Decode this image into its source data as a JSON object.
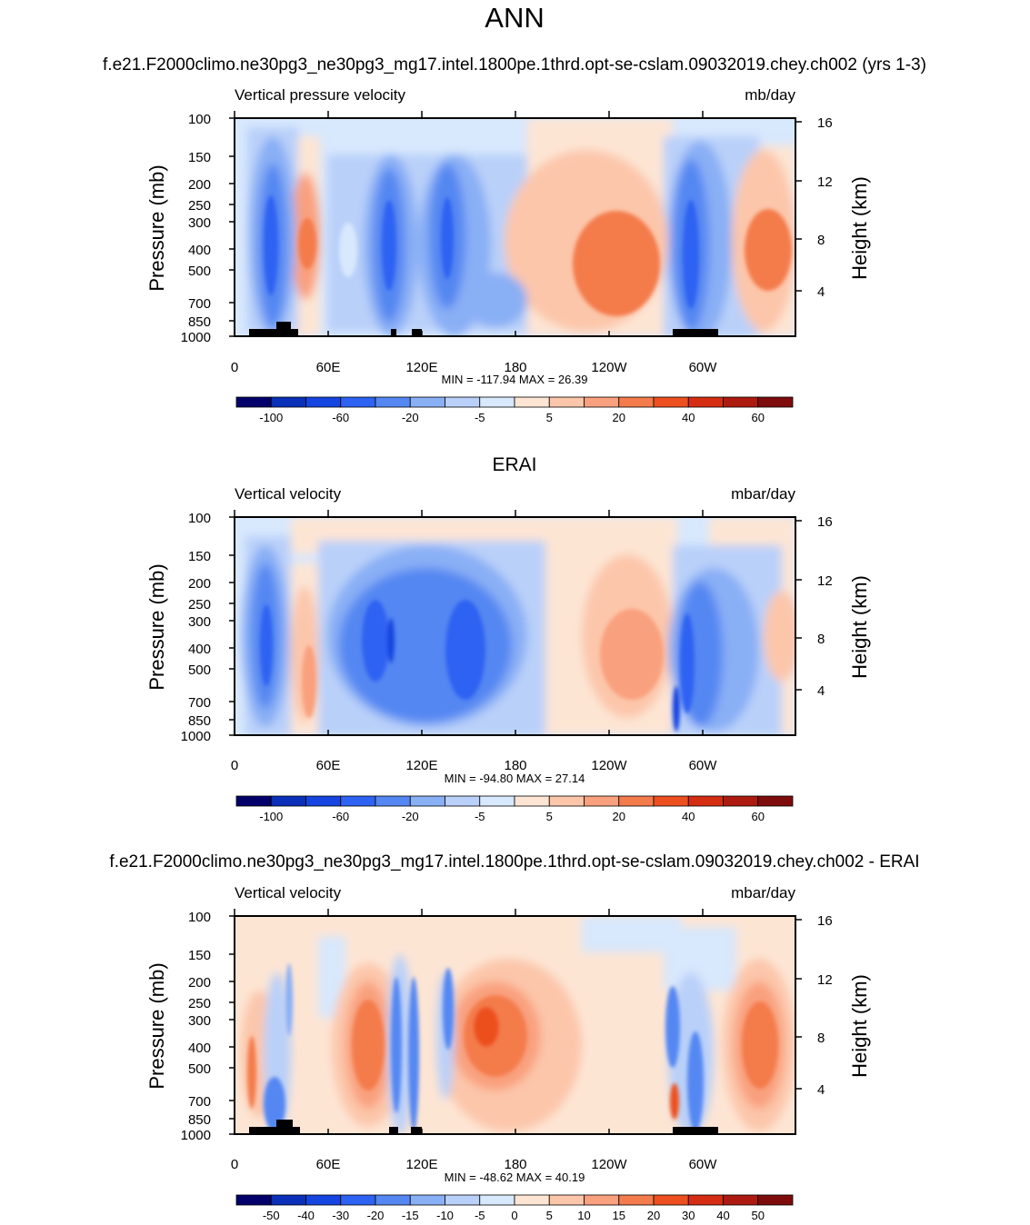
{
  "figure": {
    "title": "ANN"
  },
  "chart_data": [
    {
      "type": "heatmap",
      "title": "f.e21.F2000climo.ne30pg3_ne30pg3_mg17.intel.1800pe.1thrd.opt-se-cslam.09032019.chey.ch002 (yrs 1-3)",
      "left_label": "Vertical pressure velocity",
      "units": "mb/day",
      "ylabel": "Pressure (mb)",
      "ylabel_right": "Height (km)",
      "x_ticks": [
        "0",
        "60E",
        "120E",
        "180",
        "120W",
        "60W"
      ],
      "y_ticks": [
        "100",
        "150",
        "200",
        "250",
        "300",
        "400",
        "500",
        "700",
        "850",
        "1000"
      ],
      "height_ticks": [
        "16",
        "12",
        "8",
        "4"
      ],
      "min_max": "MIN = -117.94  MAX =  26.39",
      "colorbar_labels": [
        "-100",
        "-60",
        "-20",
        "-5",
        "5",
        "20",
        "40",
        "60"
      ]
    },
    {
      "type": "heatmap",
      "title": "ERAI",
      "left_label": "Vertical velocity",
      "units": "mbar/day",
      "ylabel": "Pressure (mb)",
      "ylabel_right": "Height (km)",
      "x_ticks": [
        "0",
        "60E",
        "120E",
        "180",
        "120W",
        "60W"
      ],
      "y_ticks": [
        "100",
        "150",
        "200",
        "250",
        "300",
        "400",
        "500",
        "700",
        "850",
        "1000"
      ],
      "height_ticks": [
        "16",
        "12",
        "8",
        "4"
      ],
      "min_max": "MIN = -94.80  MAX =  27.14",
      "colorbar_labels": [
        "-100",
        "-60",
        "-20",
        "-5",
        "5",
        "20",
        "40",
        "60"
      ]
    },
    {
      "type": "heatmap",
      "title": "f.e21.F2000climo.ne30pg3_ne30pg3_mg17.intel.1800pe.1thrd.opt-se-cslam.09032019.chey.ch002 - ERAI",
      "left_label": "Vertical velocity",
      "units": "mbar/day",
      "ylabel": "Pressure (mb)",
      "ylabel_right": "Height (km)",
      "x_ticks": [
        "0",
        "60E",
        "120E",
        "180",
        "120W",
        "60W"
      ],
      "y_ticks": [
        "100",
        "150",
        "200",
        "250",
        "300",
        "400",
        "500",
        "700",
        "850",
        "1000"
      ],
      "height_ticks": [
        "16",
        "12",
        "8",
        "4"
      ],
      "min_max": "MIN = -48.62  MAX =  40.19",
      "colorbar_labels": [
        "-50",
        "-40",
        "-30",
        "-20",
        "-15",
        "-10",
        "-5",
        "0",
        "5",
        "10",
        "15",
        "20",
        "30",
        "40",
        "50"
      ]
    }
  ],
  "colormap": [
    "#04006b",
    "#0a2fb8",
    "#1545e0",
    "#2d62f2",
    "#5587f2",
    "#89aff5",
    "#b9d0f9",
    "#d8e8fd",
    "#fde5d4",
    "#fcc6aa",
    "#f9a07e",
    "#f47b4c",
    "#ed4f1f",
    "#d52d12",
    "#ad1a0f",
    "#7e0c0c"
  ]
}
